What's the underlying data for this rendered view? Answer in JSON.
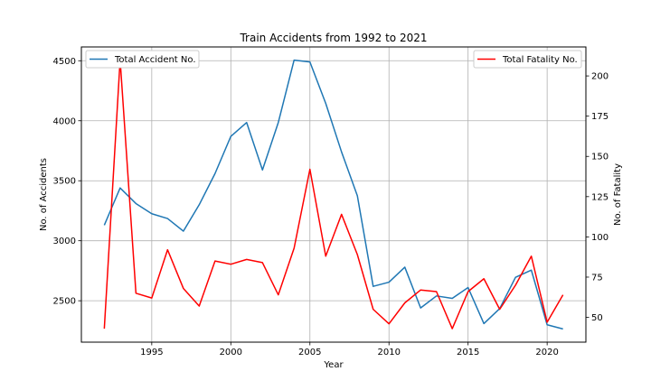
{
  "chart_data": {
    "type": "line",
    "title": "Train Accidents from 1992 to 2021",
    "xlabel": "Year",
    "ylabel_left": "No. of Accidents",
    "ylabel_right": "No. of Fatality",
    "x": [
      1992,
      1993,
      1994,
      1995,
      1996,
      1997,
      1998,
      1999,
      2000,
      2001,
      2002,
      2003,
      2004,
      2005,
      2006,
      2007,
      2008,
      2009,
      2010,
      2011,
      2012,
      2013,
      2014,
      2015,
      2016,
      2017,
      2018,
      2019,
      2020,
      2021
    ],
    "xlim": [
      1990.55,
      2022.45
    ],
    "x_ticks": [
      1995,
      2000,
      2005,
      2010,
      2015,
      2020
    ],
    "x_tick_labels": [
      "1995",
      "2000",
      "2005",
      "2010",
      "2015",
      "2020"
    ],
    "ylim_left": [
      2155,
      4615
    ],
    "y_ticks_left": [
      2500,
      3000,
      3500,
      4000,
      4500
    ],
    "y_tick_labels_left": [
      "2500",
      "3000",
      "3500",
      "4000",
      "4500"
    ],
    "ylim_right": [
      34.6,
      218.0
    ],
    "y_ticks_right": [
      50,
      75,
      100,
      125,
      150,
      175,
      200
    ],
    "y_tick_labels_right": [
      "50",
      "75",
      "100",
      "125",
      "150",
      "175",
      "200"
    ],
    "grid": true,
    "series": [
      {
        "name": "Total Accident No.",
        "axis": "left",
        "color": "#1f77b4",
        "legend_position": "upper-left",
        "values": [
          3130,
          3440,
          3310,
          3225,
          3185,
          3080,
          3300,
          3560,
          3870,
          3985,
          3590,
          3985,
          4505,
          4490,
          4145,
          3740,
          3375,
          2620,
          2655,
          2780,
          2440,
          2540,
          2520,
          2610,
          2310,
          2435,
          2695,
          2755,
          2300,
          2265
        ]
      },
      {
        "name": "Total Fatality No.",
        "axis": "right",
        "color": "#ff0000",
        "legend_position": "upper-right",
        "values": [
          43,
          210,
          65,
          62,
          92,
          68,
          57,
          85,
          83,
          86,
          84,
          64,
          93,
          142,
          88,
          114,
          89,
          55,
          46,
          59,
          67,
          66,
          43,
          66,
          74,
          55,
          70,
          88,
          47,
          64
        ]
      }
    ]
  }
}
